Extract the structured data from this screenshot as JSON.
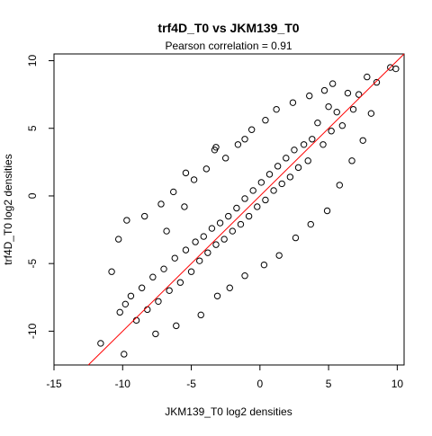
{
  "chart_data": {
    "type": "scatter",
    "title": "trf4D_T0 vs JKM139_T0",
    "subtitle": "Pearson correlation =  0.91",
    "xlabel": "JKM139_T0 log2 densities",
    "ylabel": "trf4D_T0 log2 densities",
    "xlim": [
      -15,
      10.5
    ],
    "ylim": [
      -12.5,
      10.5
    ],
    "x_ticks": [
      -15,
      -10,
      -5,
      0,
      5,
      10
    ],
    "y_ticks": [
      -10,
      -5,
      0,
      5,
      10
    ],
    "x_tick_labels": [
      "-15",
      "-10",
      "-5",
      "0",
      "5",
      "10"
    ],
    "y_tick_labels": [
      "-10",
      "-5",
      "0",
      "5",
      "10"
    ],
    "grid": false,
    "marker": "open-circle",
    "point_color": "#000000",
    "reference_line": {
      "type": "y=x",
      "color": "#ff0000"
    },
    "pearson_correlation": 0.91,
    "points": [
      [
        9.5,
        9.5
      ],
      [
        9.9,
        9.4
      ],
      [
        8.5,
        8.4
      ],
      [
        7.8,
        8.8
      ],
      [
        7.2,
        7.5
      ],
      [
        6.8,
        6.4
      ],
      [
        6.4,
        7.6
      ],
      [
        6.0,
        5.2
      ],
      [
        5.6,
        6.2
      ],
      [
        5.2,
        4.8
      ],
      [
        5.0,
        6.6
      ],
      [
        4.6,
        3.8
      ],
      [
        4.2,
        5.4
      ],
      [
        3.8,
        4.2
      ],
      [
        3.5,
        2.6
      ],
      [
        3.2,
        3.8
      ],
      [
        2.8,
        2.1
      ],
      [
        2.5,
        3.4
      ],
      [
        2.2,
        1.4
      ],
      [
        1.9,
        2.8
      ],
      [
        1.6,
        0.9
      ],
      [
        1.3,
        2.2
      ],
      [
        1.0,
        0.4
      ],
      [
        0.7,
        1.6
      ],
      [
        0.4,
        -0.3
      ],
      [
        0.1,
        1.0
      ],
      [
        -0.2,
        -0.8
      ],
      [
        -0.5,
        0.4
      ],
      [
        -0.8,
        -1.5
      ],
      [
        -1.1,
        -0.2
      ],
      [
        -1.4,
        -2.1
      ],
      [
        -1.7,
        -0.9
      ],
      [
        -2.0,
        -2.6
      ],
      [
        -2.3,
        -1.5
      ],
      [
        -2.6,
        -3.2
      ],
      [
        -2.9,
        -2.0
      ],
      [
        -3.2,
        -3.6
      ],
      [
        -3.5,
        -2.4
      ],
      [
        -3.8,
        -4.2
      ],
      [
        -4.1,
        -3.0
      ],
      [
        -4.4,
        -4.8
      ],
      [
        -4.7,
        -3.4
      ],
      [
        -5.0,
        -5.6
      ],
      [
        -5.4,
        -4.0
      ],
      [
        -5.8,
        -6.4
      ],
      [
        -6.2,
        -4.6
      ],
      [
        -6.6,
        -7.0
      ],
      [
        -7.0,
        -5.4
      ],
      [
        -7.4,
        -7.8
      ],
      [
        -7.8,
        -6.0
      ],
      [
        -8.2,
        -8.4
      ],
      [
        -8.6,
        -6.8
      ],
      [
        -9.0,
        -9.2
      ],
      [
        -9.4,
        -7.4
      ],
      [
        -9.8,
        -8.0
      ],
      [
        -10.2,
        -8.6
      ],
      [
        -10.8,
        -5.6
      ],
      [
        -11.6,
        -10.9
      ],
      [
        -9.9,
        -11.7
      ],
      [
        -7.6,
        -10.2
      ],
      [
        -6.1,
        -9.6
      ],
      [
        -4.3,
        -8.8
      ],
      [
        -3.1,
        -7.4
      ],
      [
        -2.2,
        -6.8
      ],
      [
        -1.1,
        -5.9
      ],
      [
        0.3,
        -5.1
      ],
      [
        1.4,
        -4.4
      ],
      [
        2.6,
        -3.1
      ],
      [
        3.7,
        -2.1
      ],
      [
        4.9,
        -1.1
      ],
      [
        5.8,
        0.8
      ],
      [
        6.7,
        2.6
      ],
      [
        7.5,
        4.1
      ],
      [
        8.1,
        6.1
      ],
      [
        -10.3,
        -3.2
      ],
      [
        -9.7,
        -1.8
      ],
      [
        -8.4,
        -1.5
      ],
      [
        -7.2,
        -0.6
      ],
      [
        -6.3,
        0.3
      ],
      [
        -5.5,
        -0.8
      ],
      [
        -4.8,
        1.2
      ],
      [
        -3.9,
        2.0
      ],
      [
        -3.3,
        3.4
      ],
      [
        -2.5,
        2.8
      ],
      [
        -1.6,
        3.8
      ],
      [
        -0.6,
        4.9
      ],
      [
        0.4,
        5.6
      ],
      [
        1.2,
        6.4
      ],
      [
        2.4,
        6.9
      ],
      [
        3.6,
        7.4
      ],
      [
        4.7,
        7.8
      ],
      [
        5.3,
        8.3
      ],
      [
        -3.2,
        3.6
      ],
      [
        -1.1,
        4.2
      ],
      [
        -5.4,
        1.7
      ],
      [
        -6.8,
        -2.6
      ]
    ]
  }
}
